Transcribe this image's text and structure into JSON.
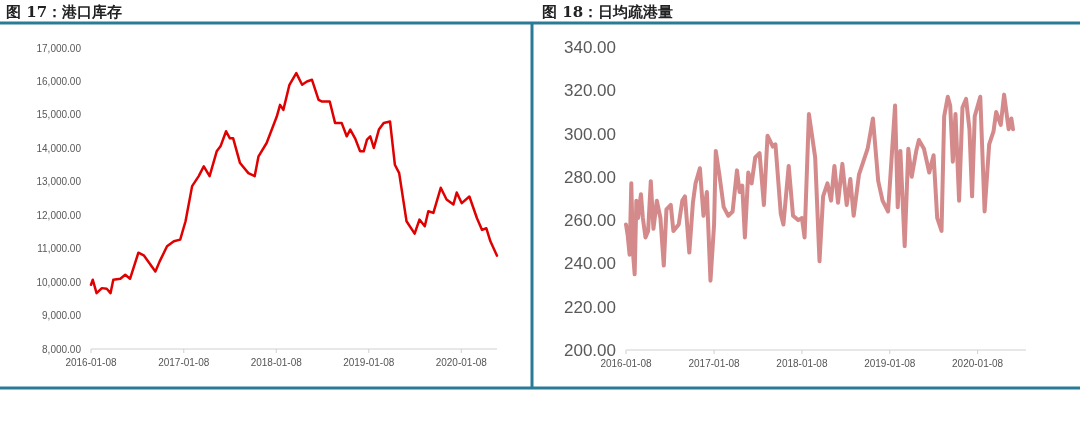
{
  "chart_data": [
    {
      "type": "line",
      "title": "图 17：港口库存",
      "xlim": [
        "2016-01-08",
        "2020-05-28"
      ],
      "xticks": [
        "2016-01-08",
        "2017-01-08",
        "2018-01-08",
        "2019-01-08",
        "2020-01-08"
      ],
      "ylim": [
        8000,
        17000
      ],
      "yticks": [
        {
          "value": 8000,
          "label": "8,000.00"
        },
        {
          "value": 9000,
          "label": "9,000.00"
        },
        {
          "value": 10000,
          "label": "10,000.00"
        },
        {
          "value": 11000,
          "label": "11,000.00"
        },
        {
          "value": 12000,
          "label": "12,000.00"
        },
        {
          "value": 13000,
          "label": "13,000.00"
        },
        {
          "value": 14000,
          "label": "14,000.00"
        },
        {
          "value": 15000,
          "label": "15,000.00"
        },
        {
          "value": 16000,
          "label": "16,000.00"
        },
        {
          "value": 17000,
          "label": "17,000.00"
        }
      ],
      "marker": "none",
      "series": [
        {
          "color": "#e00000",
          "x": [
            "2016-01-08",
            "2016-01-15",
            "2016-01-30",
            "2016-02-20",
            "2016-03-10",
            "2016-03-25",
            "2016-04-05",
            "2016-05-03",
            "2016-05-22",
            "2016-06-10",
            "2016-07-13",
            "2016-08-03",
            "2016-09-18",
            "2016-10-05",
            "2016-11-03",
            "2016-11-30",
            "2016-12-25",
            "2017-01-15",
            "2017-02-10",
            "2017-03-08",
            "2017-03-28",
            "2017-04-20",
            "2017-05-18",
            "2017-06-02",
            "2017-06-24",
            "2017-07-09",
            "2017-07-22",
            "2017-08-18",
            "2017-09-20",
            "2017-10-15",
            "2017-10-30",
            "2017-12-01",
            "2018-01-10",
            "2018-01-23",
            "2018-02-05",
            "2018-03-01",
            "2018-03-28",
            "2018-04-20",
            "2018-05-09",
            "2018-05-29",
            "2018-06-24",
            "2018-07-08",
            "2018-08-07",
            "2018-08-28",
            "2018-09-23",
            "2018-10-13",
            "2018-10-27",
            "2018-11-15",
            "2018-12-05",
            "2018-12-19",
            "2019-01-01",
            "2019-01-14",
            "2019-01-28",
            "2019-02-17",
            "2019-03-08",
            "2019-04-02",
            "2019-04-21",
            "2019-05-08",
            "2019-06-06",
            "2019-07-08",
            "2019-07-27",
            "2019-08-17",
            "2019-08-31",
            "2019-09-20",
            "2019-10-19",
            "2019-11-11",
            "2019-12-08",
            "2019-12-21",
            "2020-01-10",
            "2020-02-09",
            "2020-03-10",
            "2020-03-30",
            "2020-04-16",
            "2020-05-02",
            "2020-05-28"
          ],
          "values": [
            9920,
            10070,
            9670,
            9820,
            9800,
            9670,
            10070,
            10100,
            10220,
            10100,
            10880,
            10800,
            10320,
            10620,
            11070,
            11220,
            11270,
            11820,
            12870,
            13170,
            13460,
            13170,
            13910,
            14060,
            14510,
            14300,
            14300,
            13560,
            13260,
            13170,
            13760,
            14160,
            14950,
            15300,
            15150,
            15900,
            16250,
            15900,
            16000,
            16050,
            15450,
            15400,
            15400,
            14760,
            14760,
            14360,
            14560,
            14300,
            13910,
            13910,
            14260,
            14360,
            14010,
            14560,
            14760,
            14800,
            13510,
            13260,
            11820,
            11450,
            11870,
            11670,
            12120,
            12070,
            12820,
            12470,
            12320,
            12680,
            12360,
            12560,
            11910,
            11560,
            11610,
            11220,
            10790
          ]
        }
      ]
    },
    {
      "type": "line",
      "title": "图 18：日均疏港量",
      "xlim": [
        "2016-01-08",
        "2020-07-27"
      ],
      "xticks": [
        "2016-01-08",
        "2017-01-08",
        "2018-01-08",
        "2019-01-08",
        "2020-01-08"
      ],
      "ylim": [
        200,
        340
      ],
      "yticks": [
        {
          "value": 200,
          "label": "200.00"
        },
        {
          "value": 220,
          "label": "220.00"
        },
        {
          "value": 240,
          "label": "240.00"
        },
        {
          "value": 260,
          "label": "260.00"
        },
        {
          "value": 280,
          "label": "280.00"
        },
        {
          "value": 300,
          "label": "300.00"
        },
        {
          "value": 320,
          "label": "320.00"
        },
        {
          "value": 340,
          "label": "340.00"
        }
      ],
      "marker": "none",
      "series": [
        {
          "color": "#d48a8a",
          "x": [
            "2016-01-08",
            "2016-01-15",
            "2016-01-23",
            "2016-01-30",
            "2016-02-06",
            "2016-02-13",
            "2016-02-20",
            "2016-02-27",
            "2016-03-10",
            "2016-03-18",
            "2016-03-29",
            "2016-04-09",
            "2016-04-20",
            "2016-05-01",
            "2016-05-15",
            "2016-05-30",
            "2016-06-13",
            "2016-06-24",
            "2016-07-12",
            "2016-07-23",
            "2016-08-14",
            "2016-08-29",
            "2016-09-09",
            "2016-09-27",
            "2016-10-12",
            "2016-10-23",
            "2016-11-10",
            "2016-11-25",
            "2016-12-09",
            "2016-12-24",
            "2017-01-08",
            "2017-01-15",
            "2017-01-30",
            "2017-02-17",
            "2017-03-08",
            "2017-03-26",
            "2017-04-13",
            "2017-04-24",
            "2017-05-05",
            "2017-05-16",
            "2017-05-30",
            "2017-06-13",
            "2017-06-28",
            "2017-07-16",
            "2017-08-03",
            "2017-08-18",
            "2017-09-09",
            "2017-09-20",
            "2017-10-12",
            "2017-10-23",
            "2017-11-14",
            "2017-12-02",
            "2017-12-24",
            "2018-01-08",
            "2018-01-19",
            "2018-02-06",
            "2018-03-04",
            "2018-03-22",
            "2018-04-06",
            "2018-04-24",
            "2018-05-09",
            "2018-05-23",
            "2018-06-07",
            "2018-06-25",
            "2018-07-13",
            "2018-07-28",
            "2018-08-11",
            "2018-09-02",
            "2018-09-20",
            "2018-10-08",
            "2018-10-30",
            "2018-11-21",
            "2018-12-09",
            "2019-01-01",
            "2019-01-30",
            "2019-02-10",
            "2019-02-21",
            "2019-03-11",
            "2019-03-26",
            "2019-04-09",
            "2019-04-28",
            "2019-05-09",
            "2019-05-30",
            "2019-06-21",
            "2019-07-09",
            "2019-07-24",
            "2019-08-11",
            "2019-08-22",
            "2019-09-06",
            "2019-09-16",
            "2019-09-27",
            "2019-10-08",
            "2019-10-23",
            "2019-11-06",
            "2019-11-21",
            "2019-12-05",
            "2019-12-16",
            "2019-12-27",
            "2020-01-19",
            "2020-02-06",
            "2020-02-25",
            "2020-03-14",
            "2020-03-25",
            "2020-04-13",
            "2020-04-27",
            "2020-05-16",
            "2020-05-27",
            "2020-06-03"
          ],
          "values": [
            258,
            253,
            244,
            277,
            245,
            235,
            269,
            261,
            272,
            261,
            252,
            255,
            278,
            256,
            269,
            261,
            239,
            265,
            267,
            255,
            258,
            269,
            271,
            245,
            268,
            277,
            284,
            262,
            273,
            232,
            258,
            292,
            281,
            266,
            262,
            264,
            283,
            273,
            276,
            252,
            282,
            277,
            289,
            291,
            267,
            299,
            294,
            295,
            263,
            258,
            285,
            262,
            260,
            261,
            252,
            309,
            289,
            241,
            271,
            277,
            269,
            285,
            268,
            286,
            267,
            279,
            262,
            281,
            287,
            293,
            307,
            278,
            269,
            264,
            313,
            266,
            292,
            248,
            293,
            280,
            292,
            297,
            293,
            282,
            290,
            261,
            255,
            308,
            317,
            313,
            287,
            309,
            269,
            312,
            316,
            302,
            271,
            308,
            317,
            264,
            295,
            301,
            310,
            304,
            318,
            302,
            307,
            302
          ]
        }
      ]
    }
  ]
}
